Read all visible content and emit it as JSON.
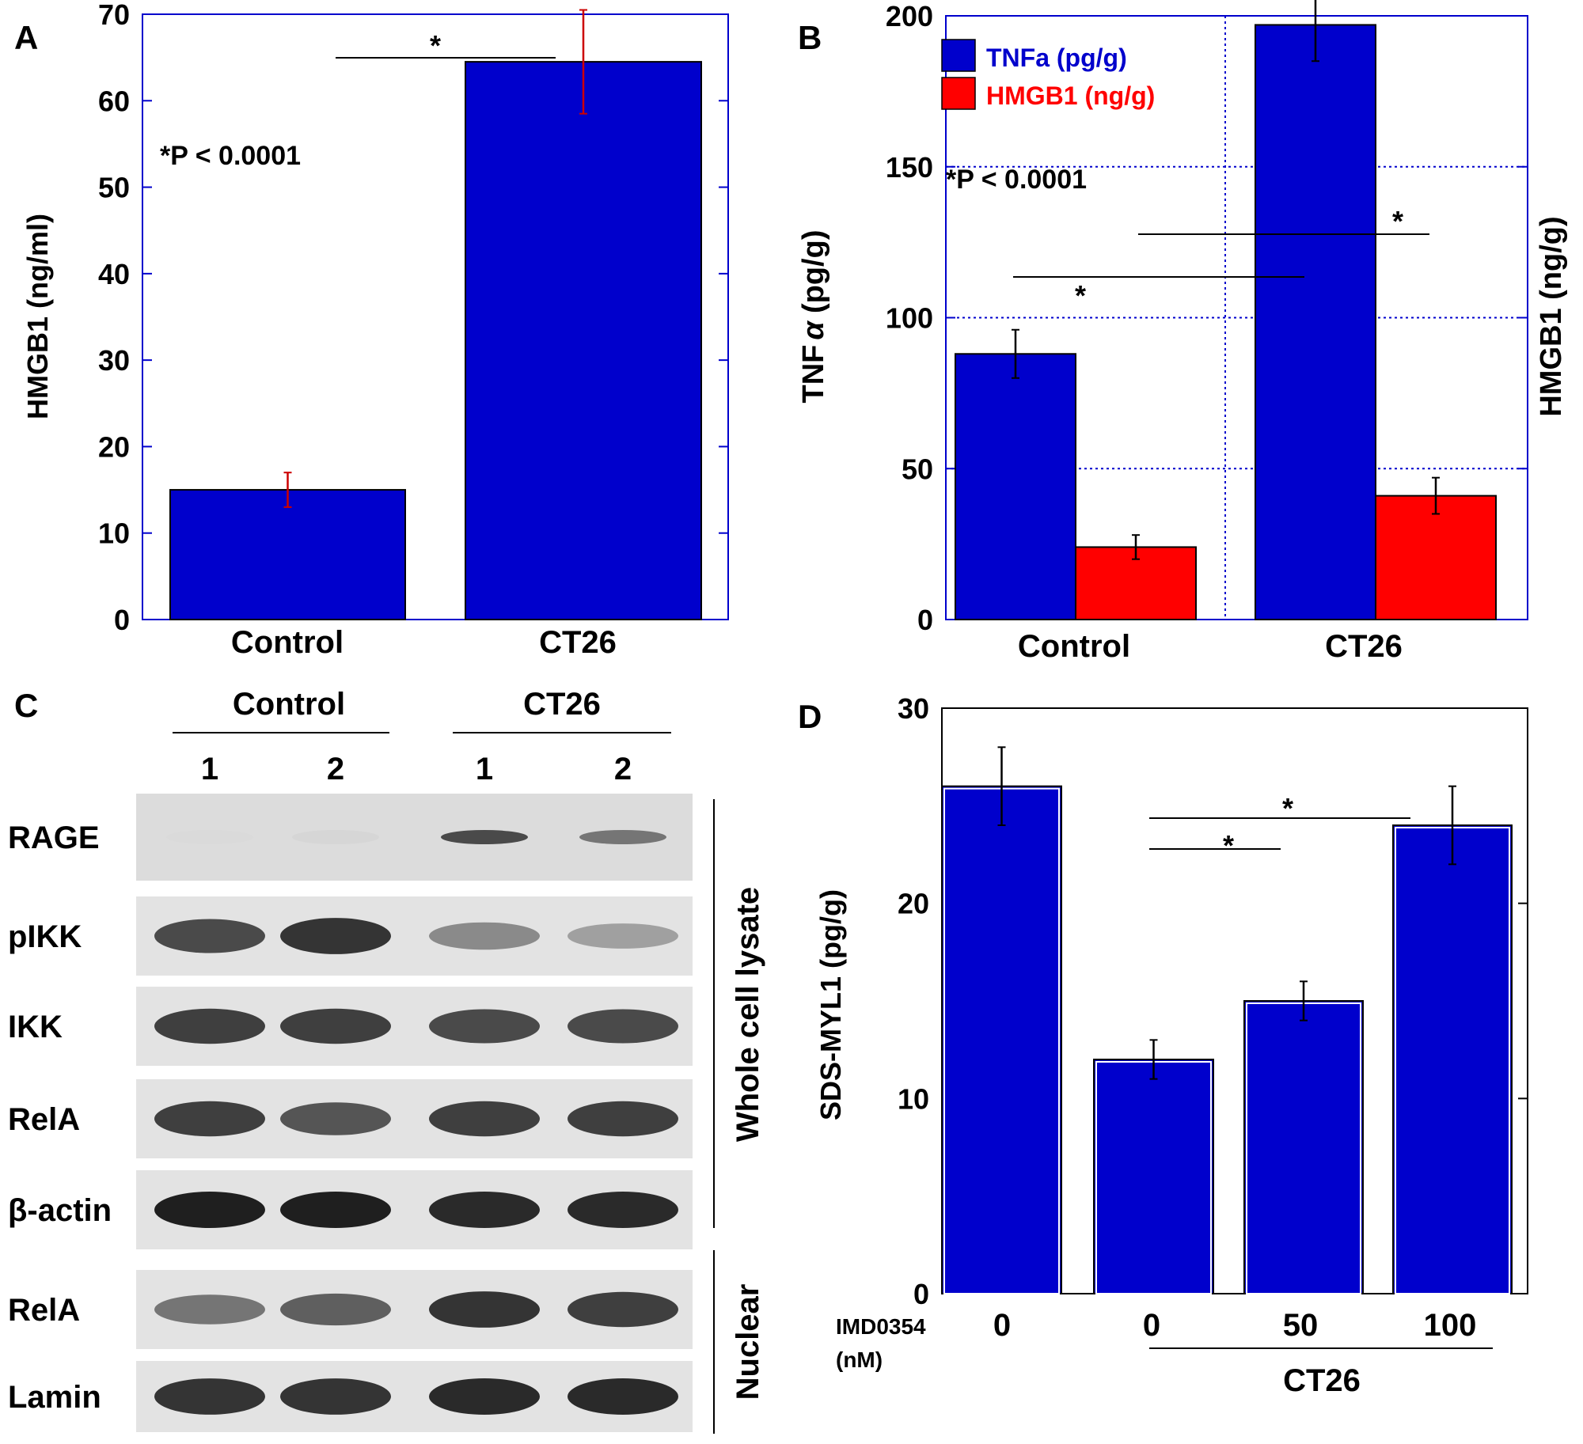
{
  "chart_data": [
    {
      "panel": "A",
      "type": "bar",
      "categories": [
        "Control",
        "CT26"
      ],
      "values": [
        15,
        64.5
      ],
      "errors": [
        2,
        6
      ],
      "ylabel": "HMGB1 (ng/ml)",
      "ylim": [
        0,
        70
      ],
      "yticks": [
        "0",
        "10",
        "20",
        "30",
        "40",
        "50",
        "60",
        "70"
      ],
      "bar_color": "#0000CC",
      "error_color": "#CC0000",
      "axis_color": "#0000CC",
      "annotation": "*P < 0.0001",
      "significance": [
        {
          "from": "Control",
          "to": "CT26",
          "label": "*"
        }
      ]
    },
    {
      "panel": "B",
      "type": "bar",
      "categories": [
        "Control",
        "CT26"
      ],
      "series": [
        {
          "name": "TNFa (pg/g)",
          "values": [
            88,
            197
          ],
          "errors": [
            8,
            12
          ],
          "color": "#0000CC"
        },
        {
          "name": "HMGB1 (ng/g)",
          "values": [
            24,
            41
          ],
          "errors": [
            4,
            6
          ],
          "color": "#FF0000"
        }
      ],
      "ylabel": "TNF",
      "ylabel_symbol": "α",
      "ylabel_unit": "(pg/g)",
      "y2label": "HMGB1 (ng/g)",
      "ylim": [
        0,
        200
      ],
      "yticks": [
        "0",
        "50",
        "100",
        "150",
        "200"
      ],
      "grid": true,
      "legend_position": "top-left",
      "axis_color": "#0000CC",
      "annotation": "*P < 0.0001",
      "significance": [
        {
          "label": "*"
        },
        {
          "label": "*"
        }
      ]
    },
    {
      "panel": "D",
      "type": "bar",
      "categories": [
        "0",
        "0",
        "50",
        "100"
      ],
      "values": [
        26,
        12,
        15,
        24
      ],
      "errors": [
        2,
        1,
        1,
        2
      ],
      "ylabel": "SDS-MYL1 (pg/g)",
      "ylim": [
        0,
        30
      ],
      "yticks": [
        "0",
        "10",
        "20",
        "30"
      ],
      "bar_color": "#0000CC",
      "error_color": "#000000",
      "xlabel_prefix_line1": "IMD0354",
      "xlabel_prefix_line2": "(nM)",
      "group_label": "CT26",
      "significance": [
        {
          "label": "*"
        },
        {
          "label": "*"
        }
      ]
    }
  ],
  "panels": {
    "a_label": "A",
    "b_label": "B",
    "c_label": "C",
    "d_label": "D"
  },
  "western": {
    "groups": [
      "Control",
      "CT26"
    ],
    "lanes": [
      "1",
      "2",
      "1",
      "2"
    ],
    "rows": [
      "RAGE",
      "pIKK",
      "IKK",
      "RelA",
      "β-actin",
      "RelA",
      "Lamin"
    ],
    "whole_label": "Whole cell lysate",
    "nuclear_label": "Nuclear",
    "intensity": [
      [
        0.08,
        0.1,
        0.75,
        0.55
      ],
      [
        0.75,
        0.85,
        0.45,
        0.35
      ],
      [
        0.8,
        0.8,
        0.75,
        0.75
      ],
      [
        0.8,
        0.7,
        0.8,
        0.8
      ],
      [
        0.95,
        0.95,
        0.9,
        0.9
      ],
      [
        0.55,
        0.65,
        0.85,
        0.8
      ],
      [
        0.85,
        0.85,
        0.9,
        0.9
      ]
    ]
  }
}
